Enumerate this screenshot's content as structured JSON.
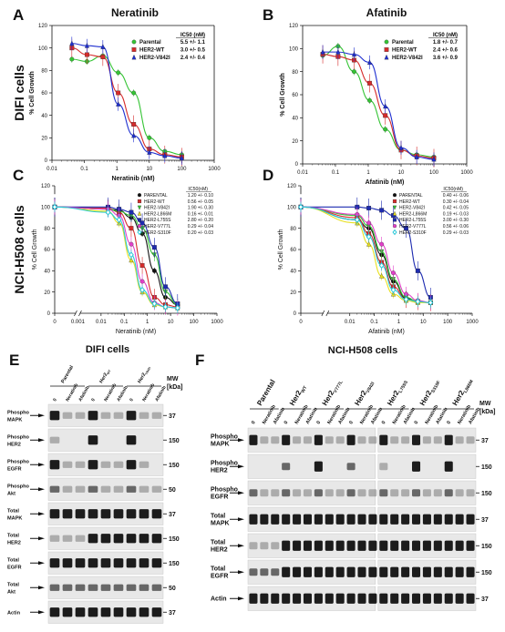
{
  "colors": {
    "black": "#111111",
    "red": "#d62b2b",
    "green": "#35c435",
    "blue": "#1f2fd0",
    "yellow": "#e8e020",
    "pink": "#e040c8",
    "cyan": "#28c8d8",
    "darkblue": "#1d2bb0",
    "magenta": "#c0208a"
  },
  "chart_data": [
    {
      "panel_letter": "A",
      "type": "line",
      "title": "Neratinib",
      "row_label": "DIFI cells",
      "xlabel": "Neratinib (nM)",
      "ylabel": "% Cell Growth",
      "x_scale": "log",
      "xlim": [
        0.01,
        1000
      ],
      "ylim": [
        0,
        120
      ],
      "x_ticks": [
        "0.01",
        "0.1",
        "1",
        "10",
        "100",
        "1000"
      ],
      "y_ticks": [
        "0",
        "20",
        "40",
        "60",
        "80",
        "100",
        "120"
      ],
      "legend_header": "IC50  (nM)",
      "legend_position": "top-right",
      "x_points": [
        0.041,
        0.12,
        0.37,
        1.1,
        3.3,
        10,
        30,
        100
      ],
      "series": [
        {
          "name": "Parental",
          "ic50": "5.5 +/- 1.1",
          "color": "green",
          "marker": "circle",
          "values": [
            90,
            88,
            93,
            78,
            60,
            20,
            8,
            5
          ]
        },
        {
          "name": "HER2-WT",
          "ic50": "3.0 +/- 0.5",
          "color": "red",
          "marker": "square",
          "values": [
            100,
            94,
            92,
            60,
            32,
            10,
            5,
            3
          ]
        },
        {
          "name": "HER2-V842I",
          "ic50": "2.4 +/- 0.4",
          "color": "blue",
          "marker": "triangle",
          "values": [
            104,
            102,
            101,
            50,
            22,
            7,
            4,
            2
          ]
        }
      ]
    },
    {
      "panel_letter": "B",
      "type": "line",
      "title": "Afatinib",
      "xlabel": "Afatinib (nM)",
      "ylabel": "% Cell Growth",
      "x_scale": "log",
      "xlim": [
        0.01,
        1000
      ],
      "ylim": [
        0,
        120
      ],
      "x_ticks": [
        "0.01",
        "0.1",
        "1",
        "10",
        "100",
        "1000"
      ],
      "y_ticks": [
        "0",
        "20",
        "40",
        "60",
        "80",
        "100",
        "120"
      ],
      "legend_header": "IC50  (nM)",
      "legend_position": "top-right",
      "x_points": [
        0.041,
        0.12,
        0.37,
        1.1,
        3.3,
        10,
        30,
        100
      ],
      "series": [
        {
          "name": "Parental",
          "ic50": "1.8 +/- 0.7",
          "color": "green",
          "marker": "circle",
          "values": [
            94,
            102,
            80,
            55,
            30,
            12,
            8,
            6
          ]
        },
        {
          "name": "HER2-WT",
          "ic50": "2.4 +/- 0.6",
          "color": "red",
          "marker": "square",
          "values": [
            95,
            93,
            90,
            70,
            42,
            12,
            7,
            5
          ]
        },
        {
          "name": "HER2-V842I",
          "ic50": "3.6 +/- 0.9",
          "color": "blue",
          "marker": "triangle",
          "values": [
            97,
            97,
            95,
            88,
            50,
            14,
            6,
            4
          ]
        }
      ]
    },
    {
      "panel_letter": "C",
      "type": "line",
      "row_label": "NCI-H508 cells",
      "xlabel": "Neratinib (nM)",
      "ylabel": "% Cell Growth",
      "x_scale": "log",
      "axis_break": true,
      "xlim": [
        0.0001,
        1000
      ],
      "ylim": [
        0,
        120
      ],
      "x_ticks": [
        "0",
        "0.001",
        "0.01",
        "0.1",
        "1",
        "10",
        "100",
        "1000"
      ],
      "y_ticks": [
        "0",
        "20",
        "40",
        "60",
        "80",
        "100",
        "120"
      ],
      "legend_header": "IC50(nM)",
      "legend_position": "top-right",
      "x_points": [
        0.0001,
        0.02,
        0.06,
        0.2,
        0.6,
        2,
        6,
        20
      ],
      "series": [
        {
          "name": "PARENTAL",
          "ic50": "1.20 +/- 0.10",
          "color": "black",
          "marker": "circle",
          "values": [
            100,
            98,
            97,
            90,
            75,
            40,
            15,
            8
          ]
        },
        {
          "name": "HER2-WT",
          "ic50": "0.56 +/- 0.05",
          "color": "red",
          "marker": "square",
          "values": [
            100,
            99,
            95,
            80,
            45,
            15,
            8,
            6
          ]
        },
        {
          "name": "HER2-V842I",
          "ic50": "1.90 +/- 0.30",
          "color": "green",
          "marker": "triangle-down",
          "values": [
            100,
            98,
            96,
            92,
            80,
            55,
            20,
            8
          ]
        },
        {
          "name": "HER2-L866M",
          "ic50": "0.16 +/- 0.01",
          "color": "yellow",
          "marker": "triangle",
          "values": [
            100,
            96,
            85,
            50,
            20,
            8,
            6,
            5
          ]
        },
        {
          "name": "HER2-L755S",
          "ic50": "2.80 +/- 0.20",
          "color": "darkblue",
          "marker": "square",
          "values": [
            100,
            100,
            98,
            95,
            85,
            62,
            25,
            9
          ]
        },
        {
          "name": "HER2-V777L",
          "ic50": "0.29 +/- 0.04",
          "color": "pink",
          "marker": "circle",
          "values": [
            100,
            98,
            92,
            65,
            30,
            10,
            6,
            5
          ]
        },
        {
          "name": "HER2-S310F",
          "ic50": "0.20 +/- 0.03",
          "color": "cyan",
          "marker": "diamond",
          "values": [
            100,
            95,
            88,
            55,
            22,
            9,
            6,
            5
          ]
        }
      ]
    },
    {
      "panel_letter": "D",
      "type": "line",
      "xlabel": "Afatinib (nM)",
      "ylabel": "% Cell Growth",
      "x_scale": "log",
      "axis_break": true,
      "xlim": [
        0.0001,
        1000
      ],
      "ylim": [
        0,
        120
      ],
      "x_ticks": [
        "0",
        "0.01",
        "0.1",
        "1",
        "10",
        "100",
        "1000"
      ],
      "y_ticks": [
        "0",
        "20",
        "40",
        "60",
        "80",
        "100",
        "120"
      ],
      "legend_header": "IC50(nM)",
      "legend_position": "top-right",
      "x_points": [
        0.0001,
        0.02,
        0.06,
        0.2,
        0.6,
        2,
        6,
        20
      ],
      "series": [
        {
          "name": "PARENTAL",
          "ic50": "0.40 +/- 0.06",
          "color": "black",
          "marker": "circle",
          "values": [
            100,
            88,
            80,
            55,
            30,
            14,
            11,
            10
          ]
        },
        {
          "name": "HER2-WT",
          "ic50": "0.30 +/- 0.04",
          "color": "red",
          "marker": "square",
          "values": [
            100,
            90,
            75,
            48,
            25,
            13,
            11,
            10
          ]
        },
        {
          "name": "HER2-V842I",
          "ic50": "0.42 +/- 0.05",
          "color": "green",
          "marker": "triangle-down",
          "values": [
            100,
            92,
            82,
            58,
            32,
            15,
            11,
            10
          ]
        },
        {
          "name": "HER2-L866M",
          "ic50": "0.19 +/- 0.03",
          "color": "yellow",
          "marker": "triangle",
          "values": [
            100,
            85,
            65,
            35,
            18,
            12,
            10,
            10
          ]
        },
        {
          "name": "HER2-L755S",
          "ic50": "3.00 +/- 0.30",
          "color": "darkblue",
          "marker": "square",
          "values": [
            100,
            100,
            99,
            97,
            92,
            80,
            40,
            15
          ]
        },
        {
          "name": "HER2-V777L",
          "ic50": "0.56 +/- 0.06",
          "color": "pink",
          "marker": "circle",
          "values": [
            100,
            93,
            85,
            65,
            38,
            18,
            12,
            10
          ]
        },
        {
          "name": "HER2-S310F",
          "ic50": "0.29 +/- 0.03",
          "color": "cyan",
          "marker": "diamond",
          "values": [
            100,
            88,
            72,
            45,
            22,
            13,
            11,
            10
          ]
        }
      ]
    }
  ],
  "blots": {
    "E": {
      "letter": "E",
      "title": "DIFI cells",
      "groups": [
        "Parental",
        "Her2WT",
        "Her2V842I"
      ],
      "lanes": [
        "0",
        "Neratinib",
        "Afatinib"
      ],
      "mw_header": "MW\n[kDa]",
      "rows": [
        {
          "label": "Phospho MAPK",
          "mw": "37",
          "pattern": [
            3,
            1,
            1,
            3,
            1,
            1,
            3,
            1,
            1
          ]
        },
        {
          "label": "Phospho HER2",
          "mw": "150",
          "pattern": [
            1,
            0,
            0,
            3,
            0,
            0,
            3,
            0,
            0
          ]
        },
        {
          "label": "Phospho EGFR",
          "mw": "150",
          "pattern": [
            3,
            1,
            1,
            3,
            1,
            1,
            3,
            1,
            0
          ]
        },
        {
          "label": "Phospho Akt",
          "mw": "50",
          "pattern": [
            2,
            1,
            1,
            2,
            1,
            1,
            2,
            1,
            1
          ]
        },
        {
          "label": "Total MAPK",
          "mw": "37",
          "pattern": [
            3,
            3,
            3,
            3,
            3,
            3,
            3,
            3,
            3
          ]
        },
        {
          "label": "Total HER2",
          "mw": "150",
          "pattern": [
            1,
            1,
            1,
            3,
            3,
            3,
            3,
            3,
            3
          ]
        },
        {
          "label": "Total EGFR",
          "mw": "150",
          "pattern": [
            3,
            3,
            3,
            3,
            3,
            3,
            3,
            3,
            3
          ]
        },
        {
          "label": "Total Akt",
          "mw": "50",
          "pattern": [
            2,
            2,
            2,
            2,
            2,
            2,
            2,
            2,
            2
          ]
        },
        {
          "label": "Actin",
          "mw": "37",
          "pattern": [
            3,
            3,
            3,
            3,
            3,
            3,
            3,
            3,
            3
          ]
        }
      ]
    },
    "F": {
      "letter": "F",
      "title": "NCI-H508 cells",
      "groups": [
        "Parental",
        "Her2WT",
        "Her2V777L",
        "Her2V842I",
        "Her2L755S",
        "Her2S310F",
        "Her2L866M"
      ],
      "lanes": [
        "0",
        "Neratinib",
        "Afatinib"
      ],
      "mw_header": "MW\n[kDa]",
      "rows": [
        {
          "label": "Phospho MAPK",
          "mw": "37",
          "pattern": [
            3,
            1,
            1,
            3,
            1,
            1,
            3,
            1,
            1,
            3,
            1,
            1,
            3,
            1,
            1,
            3,
            1,
            1,
            3,
            1,
            1
          ]
        },
        {
          "label": "Phospho HER2",
          "mw": "150",
          "pattern": [
            0,
            0,
            0,
            2,
            0,
            0,
            3,
            0,
            0,
            2,
            0,
            0,
            1,
            0,
            0,
            3,
            0,
            0,
            3,
            0,
            0
          ]
        },
        {
          "label": "Phospho EGFR",
          "mw": "150",
          "pattern": [
            2,
            1,
            1,
            2,
            1,
            1,
            2,
            1,
            1,
            2,
            1,
            1,
            2,
            1,
            1,
            2,
            1,
            1,
            2,
            1,
            1
          ]
        },
        {
          "label": "Total MAPK",
          "mw": "37",
          "pattern": [
            3,
            3,
            3,
            3,
            3,
            3,
            3,
            3,
            3,
            3,
            3,
            3,
            3,
            3,
            3,
            3,
            3,
            3,
            3,
            3,
            3
          ]
        },
        {
          "label": "Total HER2",
          "mw": "150",
          "pattern": [
            1,
            1,
            1,
            3,
            3,
            3,
            3,
            3,
            3,
            3,
            3,
            3,
            3,
            3,
            3,
            3,
            3,
            3,
            3,
            3,
            3
          ]
        },
        {
          "label": "Total EGFR",
          "mw": "150",
          "pattern": [
            2,
            2,
            2,
            3,
            3,
            3,
            3,
            3,
            3,
            3,
            3,
            3,
            3,
            3,
            3,
            3,
            3,
            3,
            3,
            3,
            3
          ]
        },
        {
          "label": "Actin",
          "mw": "37",
          "pattern": [
            3,
            3,
            3,
            3,
            3,
            3,
            3,
            3,
            3,
            3,
            3,
            3,
            3,
            3,
            3,
            3,
            3,
            3,
            3,
            3,
            3
          ]
        }
      ]
    }
  }
}
